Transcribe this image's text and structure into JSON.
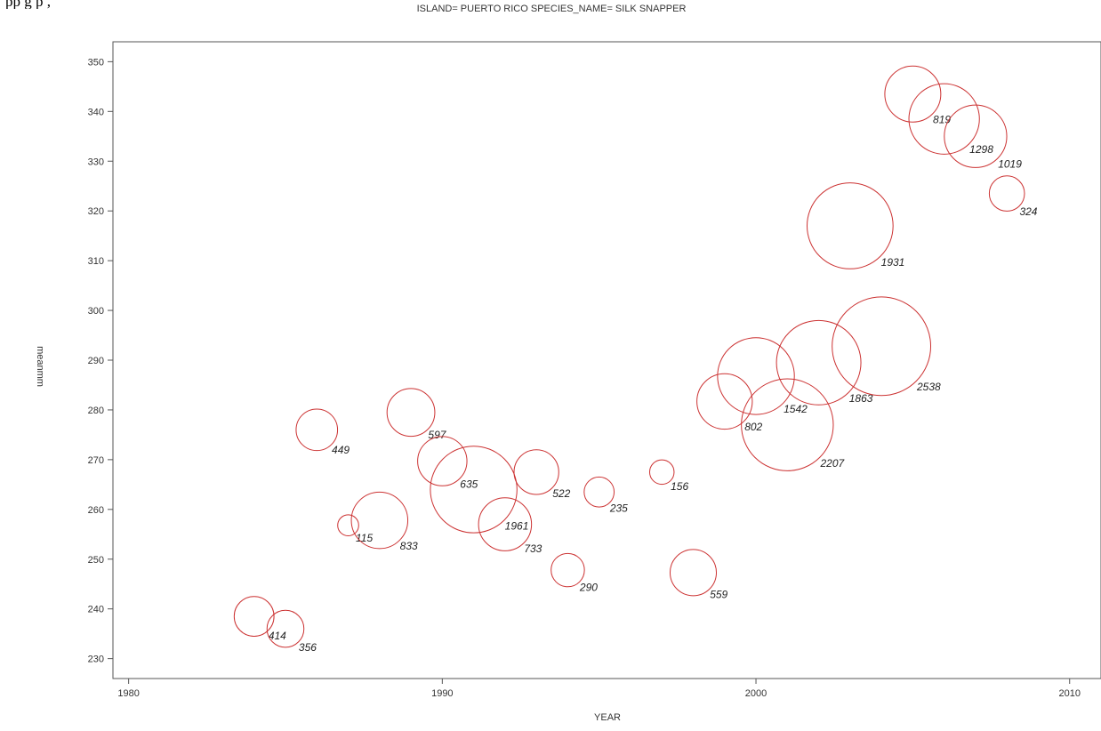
{
  "top_text": "pp          g                    p                    ,",
  "chart_data": {
    "type": "bubble",
    "title": "ISLAND= PUERTO RICO SPECIES_NAME= SILK SNAPPER",
    "xlabel": "YEAR",
    "ylabel": "meanmm",
    "xlim": [
      1979.5,
      2011
    ],
    "ylim": [
      226,
      354
    ],
    "xticks": [
      1980,
      1990,
      2000,
      2010
    ],
    "yticks": [
      230,
      240,
      250,
      260,
      270,
      280,
      290,
      300,
      310,
      320,
      330,
      340,
      350
    ],
    "grid": false,
    "bubble_color": "#cc3333",
    "points": [
      {
        "x": 1984,
        "y": 238.5,
        "n": 414
      },
      {
        "x": 1985,
        "y": 236,
        "n": 356
      },
      {
        "x": 1986,
        "y": 276,
        "n": 449
      },
      {
        "x": 1987,
        "y": 256.8,
        "n": 115
      },
      {
        "x": 1988,
        "y": 257.8,
        "n": 833
      },
      {
        "x": 1989,
        "y": 279.5,
        "n": 597
      },
      {
        "x": 1990,
        "y": 269.7,
        "n": 635
      },
      {
        "x": 1991,
        "y": 264,
        "n": 1961
      },
      {
        "x": 1992,
        "y": 257,
        "n": 733
      },
      {
        "x": 1993,
        "y": 267.5,
        "n": 522
      },
      {
        "x": 1994,
        "y": 247.8,
        "n": 290
      },
      {
        "x": 1995,
        "y": 263.5,
        "n": 235
      },
      {
        "x": 1997,
        "y": 267.5,
        "n": 156
      },
      {
        "x": 1998,
        "y": 247.3,
        "n": 559
      },
      {
        "x": 1999,
        "y": 281.7,
        "n": 802
      },
      {
        "x": 2000,
        "y": 286.8,
        "n": 1542
      },
      {
        "x": 2001,
        "y": 277,
        "n": 2207
      },
      {
        "x": 2002,
        "y": 289.5,
        "n": 1863
      },
      {
        "x": 2003,
        "y": 317,
        "n": 1931
      },
      {
        "x": 2004,
        "y": 292.8,
        "n": 2538
      },
      {
        "x": 2005,
        "y": 343.5,
        "n": 819
      },
      {
        "x": 2006,
        "y": 338.5,
        "n": 1298
      },
      {
        "x": 2007,
        "y": 335,
        "n": 1019
      },
      {
        "x": 2008,
        "y": 323.5,
        "n": 324
      }
    ]
  }
}
